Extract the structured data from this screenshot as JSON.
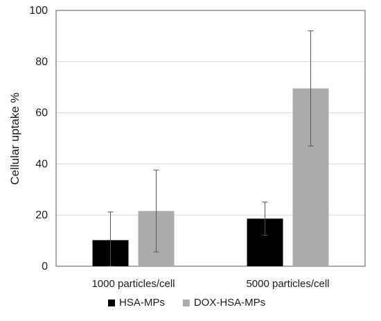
{
  "chart_data": {
    "type": "bar",
    "title": "",
    "xlabel": "",
    "ylabel": "Cellular uptake  %",
    "ylim": [
      0,
      100
    ],
    "yticks": [
      0,
      20,
      40,
      60,
      80,
      100
    ],
    "grid": true,
    "legend_position": "bottom",
    "categories": [
      "1000 particles/cell",
      "5000 particles/cell"
    ],
    "series": [
      {
        "name": "HSA-MPs",
        "color": "#000000",
        "values": [
          10.2,
          18.6
        ],
        "error": [
          11.0,
          6.5
        ]
      },
      {
        "name": "DOX-HSA-MPs",
        "color": "#adaaaa",
        "values": [
          21.6,
          69.5
        ],
        "error": [
          16.0,
          22.5
        ]
      }
    ]
  }
}
